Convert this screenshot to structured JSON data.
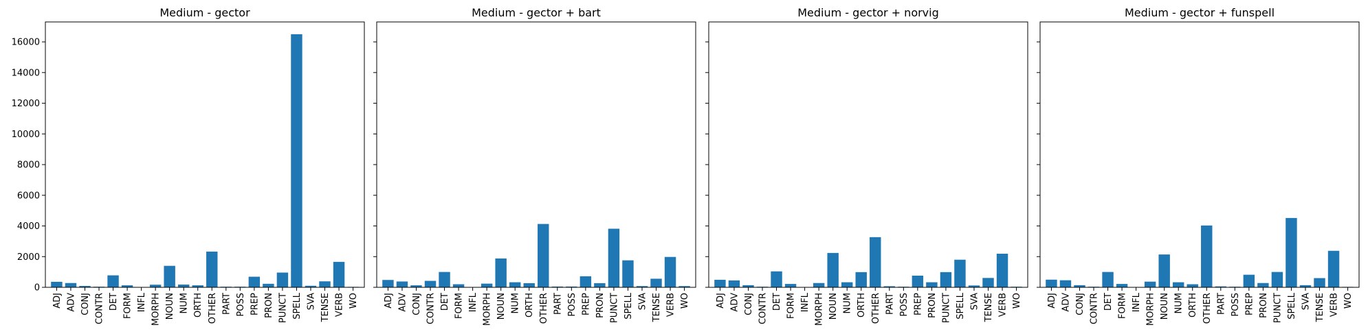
{
  "colors": {
    "bar": "#1f77b4",
    "axis": "#000000",
    "background": "#ffffff"
  },
  "chart_data": [
    {
      "type": "bar",
      "title": "Medium - gector",
      "categories": [
        "ADJ",
        "ADV",
        "CONJ",
        "CONTR",
        "DET",
        "FORM",
        "INFL",
        "MORPH",
        "NOUN",
        "NUM",
        "ORTH",
        "OTHER",
        "PART",
        "POSS",
        "PREP",
        "PRON",
        "PUNCT",
        "SPELL",
        "SVA",
        "TENSE",
        "VERB",
        "WO"
      ],
      "values": [
        360,
        280,
        90,
        40,
        780,
        130,
        10,
        170,
        1400,
        180,
        130,
        2330,
        40,
        40,
        690,
        230,
        960,
        16500,
        100,
        390,
        1660,
        30
      ],
      "ylim": [
        0,
        17300
      ],
      "yticks": [
        0,
        2000,
        4000,
        6000,
        8000,
        10000,
        12000,
        14000,
        16000
      ],
      "xlabel": "",
      "ylabel": "",
      "grid": false
    },
    {
      "type": "bar",
      "title": "Medium - gector + bart",
      "categories": [
        "ADJ",
        "ADV",
        "CONJ",
        "CONTR",
        "DET",
        "FORM",
        "INFL",
        "MORPH",
        "NOUN",
        "NUM",
        "ORTH",
        "OTHER",
        "PART",
        "POSS",
        "PREP",
        "PRON",
        "PUNCT",
        "SPELL",
        "SVA",
        "TENSE",
        "VERB",
        "WO"
      ],
      "values": [
        480,
        380,
        130,
        420,
        1000,
        200,
        10,
        240,
        1880,
        330,
        270,
        4130,
        50,
        50,
        720,
        270,
        3820,
        1760,
        80,
        560,
        1980,
        80
      ],
      "ylim": [
        0,
        17300
      ],
      "yticks": [
        0,
        2000,
        4000,
        6000,
        8000,
        10000,
        12000,
        14000,
        16000
      ],
      "xlabel": "",
      "ylabel": "",
      "grid": false
    },
    {
      "type": "bar",
      "title": "Medium - gector + norvig",
      "categories": [
        "ADJ",
        "ADV",
        "CONJ",
        "CONTR",
        "DET",
        "FORM",
        "INFL",
        "MORPH",
        "NOUN",
        "NUM",
        "ORTH",
        "OTHER",
        "PART",
        "POSS",
        "PREP",
        "PRON",
        "PUNCT",
        "SPELL",
        "SVA",
        "TENSE",
        "VERB",
        "WO"
      ],
      "values": [
        490,
        450,
        140,
        40,
        1040,
        220,
        10,
        280,
        2240,
        330,
        990,
        3270,
        70,
        40,
        760,
        330,
        990,
        1800,
        120,
        610,
        2190,
        40
      ],
      "ylim": [
        0,
        17300
      ],
      "yticks": [
        0,
        2000,
        4000,
        6000,
        8000,
        10000,
        12000,
        14000,
        16000
      ],
      "xlabel": "",
      "ylabel": "",
      "grid": false
    },
    {
      "type": "bar",
      "title": "Medium - gector + funspell",
      "categories": [
        "ADJ",
        "ADV",
        "CONJ",
        "CONTR",
        "DET",
        "FORM",
        "INFL",
        "MORPH",
        "NOUN",
        "NUM",
        "ORTH",
        "OTHER",
        "PART",
        "POSS",
        "PREP",
        "PRON",
        "PUNCT",
        "SPELL",
        "SVA",
        "TENSE",
        "VERB",
        "WO"
      ],
      "values": [
        500,
        460,
        140,
        40,
        1000,
        220,
        10,
        370,
        2140,
        330,
        200,
        4030,
        60,
        40,
        820,
        280,
        1000,
        4520,
        140,
        600,
        2380,
        30
      ],
      "ylim": [
        0,
        17300
      ],
      "yticks": [
        0,
        2000,
        4000,
        6000,
        8000,
        10000,
        12000,
        14000,
        16000
      ],
      "xlabel": "",
      "ylabel": "",
      "grid": false
    }
  ]
}
